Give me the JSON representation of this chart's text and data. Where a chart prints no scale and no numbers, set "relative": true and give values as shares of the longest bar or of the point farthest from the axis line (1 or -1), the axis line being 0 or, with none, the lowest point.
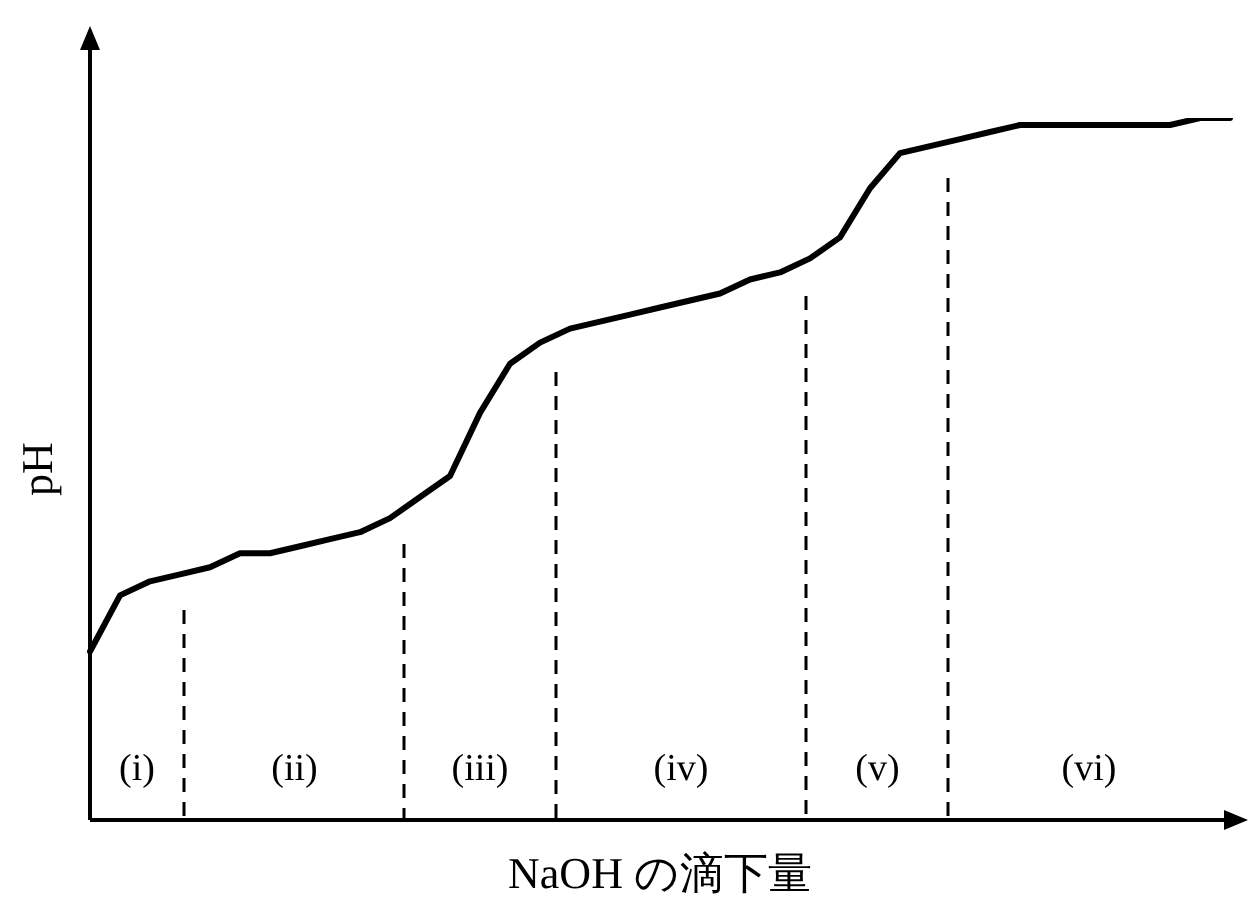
{
  "chart_data": {
    "type": "line",
    "relative": true,
    "xlabel": "NaOH の滴下量",
    "ylabel": "pH",
    "line_style": "solid",
    "categories": [
      null,
      null,
      null,
      null,
      null,
      null,
      null,
      null,
      null,
      null,
      null,
      null,
      null,
      null,
      null,
      null,
      null,
      null,
      null,
      null,
      null,
      null,
      null,
      null,
      null,
      null,
      null,
      null,
      null,
      null,
      null,
      null,
      null,
      null,
      null,
      null,
      null,
      null,
      null
    ],
    "series": [
      {
        "color": "#000000",
        "values": [
          0.24,
          0.32,
          0.34,
          0.35,
          0.36,
          0.38,
          0.38,
          0.39,
          0.4,
          0.41,
          0.43,
          0.46,
          0.49,
          0.58,
          0.65,
          0.68,
          0.7,
          0.71,
          0.72,
          0.73,
          0.74,
          0.75,
          0.77,
          0.78,
          0.8,
          0.83,
          0.9,
          0.95,
          0.96,
          0.97,
          0.98,
          0.99,
          0.99,
          0.99,
          0.99,
          0.99,
          0.99,
          1,
          1
        ]
      }
    ],
    "annotations": [
      "(i)",
      "(ii)",
      "(iii)",
      "(iv)",
      "(v)",
      "(vi)"
    ]
  }
}
